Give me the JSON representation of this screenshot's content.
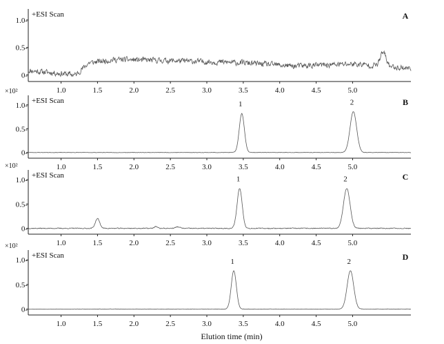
{
  "chart_data": [
    {
      "type": "line",
      "panel_label": "A",
      "title": "+ESI Scan",
      "multiplier": "",
      "ylim": [
        -0.12,
        1.2
      ],
      "y_ticks": [
        {
          "value": 1.0,
          "label": "1.0-"
        },
        {
          "value": 0.5,
          "label": "0.5-"
        },
        {
          "value": 0,
          "label": "0-"
        }
      ],
      "x_tick_labels": [
        "1.0",
        "1.5",
        "2.0",
        "2.5",
        "3.0",
        "3.5",
        "4.0",
        "4.5",
        "5.0"
      ],
      "peaks": [],
      "bumps": [
        {
          "x": 5.42,
          "height": 0.25,
          "width": 0.04
        }
      ],
      "noise": {
        "amplitude": 0.07,
        "seed": 11,
        "steps": [
          {
            "x": 0.55,
            "base": 0.08
          },
          {
            "x": 1.2,
            "base": 0.0
          },
          {
            "x": 1.38,
            "base": 0.22
          },
          {
            "x": 1.75,
            "base": 0.28
          },
          {
            "x": 2.5,
            "base": 0.26
          },
          {
            "x": 3.5,
            "base": 0.22
          },
          {
            "x": 4.2,
            "base": 0.16
          },
          {
            "x": 5.0,
            "base": 0.2
          },
          {
            "x": 5.8,
            "base": 0.12
          }
        ]
      }
    },
    {
      "type": "line",
      "panel_label": "B",
      "title": "+ESI Scan",
      "multiplier": "×10²",
      "ylim": [
        -0.12,
        1.2
      ],
      "y_ticks": [
        {
          "value": 1.0,
          "label": "1.0-"
        },
        {
          "value": 0.5,
          "label": "0.5-"
        },
        {
          "value": 0,
          "label": "0-"
        }
      ],
      "x_tick_labels": [
        "1.0",
        "1.5",
        "2.0",
        "2.5",
        "3.0",
        "3.5",
        "4.0",
        "4.5",
        "5.0"
      ],
      "peaks": [
        {
          "label": "1",
          "x": 3.48,
          "height": 0.82,
          "width": 0.035
        },
        {
          "label": "2",
          "x": 5.01,
          "height": 0.86,
          "width": 0.045
        }
      ],
      "bumps": [],
      "noise": {
        "amplitude": 0.006,
        "seed": 23,
        "steps": [
          {
            "x": 0.55,
            "base": 0.0
          }
        ]
      }
    },
    {
      "type": "line",
      "panel_label": "C",
      "title": "+ESI Scan",
      "multiplier": "×10²",
      "ylim": [
        -0.12,
        1.2
      ],
      "y_ticks": [
        {
          "value": 1.0,
          "label": "1.0-"
        },
        {
          "value": 0.5,
          "label": "0.5-"
        },
        {
          "value": 0,
          "label": "0-"
        }
      ],
      "x_tick_labels": [
        "1.0",
        "1.5",
        "2.0",
        "2.5",
        "3.0",
        "3.5",
        "4.0",
        "4.5",
        "5.0"
      ],
      "peaks": [
        {
          "label": "1",
          "x": 3.45,
          "height": 0.82,
          "width": 0.035
        },
        {
          "label": "2",
          "x": 4.92,
          "height": 0.82,
          "width": 0.045
        }
      ],
      "bumps": [
        {
          "x": 1.5,
          "height": 0.2,
          "width": 0.03
        },
        {
          "x": 2.3,
          "height": 0.04,
          "width": 0.02
        },
        {
          "x": 2.6,
          "height": 0.03,
          "width": 0.03
        }
      ],
      "noise": {
        "amplitude": 0.012,
        "seed": 37,
        "steps": [
          {
            "x": 0.55,
            "base": 0.0
          }
        ]
      }
    },
    {
      "type": "line",
      "panel_label": "D",
      "title": "+ESI Scan",
      "multiplier": "×10²",
      "ylim": [
        -0.12,
        1.2
      ],
      "y_ticks": [
        {
          "value": 1.0,
          "label": "1.0-"
        },
        {
          "value": 0.5,
          "label": "0.5-"
        },
        {
          "value": 0,
          "label": "0-"
        }
      ],
      "x_tick_labels": [
        "1.0",
        "1.5",
        "2.0",
        "2.5",
        "3.0",
        "3.5",
        "4.0",
        "4.5",
        "5.0"
      ],
      "peaks": [
        {
          "label": "1",
          "x": 3.37,
          "height": 0.78,
          "width": 0.035
        },
        {
          "label": "2",
          "x": 4.97,
          "height": 0.78,
          "width": 0.045
        }
      ],
      "bumps": [],
      "noise": {
        "amplitude": 0.005,
        "seed": 53,
        "steps": [
          {
            "x": 0.55,
            "base": 0.0
          }
        ]
      }
    }
  ],
  "xlabel": "Elution time (min)"
}
